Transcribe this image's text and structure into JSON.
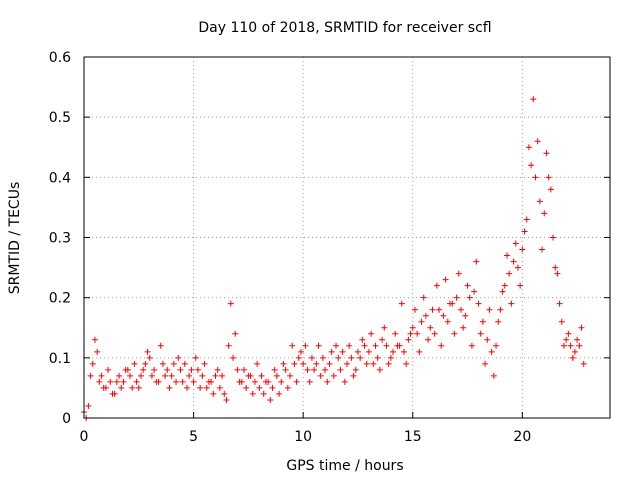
{
  "chart_data": {
    "type": "scatter",
    "title": "Day 110 of 2018, SRMTID for receiver scfl",
    "xlabel": "GPS time / hours",
    "ylabel": "SRMTID / TECUs",
    "xlim": [
      0,
      24
    ],
    "ylim": [
      0,
      0.6
    ],
    "xticks": [
      0,
      5,
      10,
      15,
      20
    ],
    "xtick_labels": [
      "0",
      "5",
      "10",
      "15",
      "20"
    ],
    "yticks": [
      0,
      0.1,
      0.2,
      0.3,
      0.4,
      0.5,
      0.6
    ],
    "ytick_labels": [
      "0",
      "0.1",
      "0.2",
      "0.3",
      "0.4",
      "0.5",
      "0.6"
    ],
    "grid": true,
    "marker": "+",
    "color": "#ff0000",
    "x": [
      0.0,
      0.2,
      0.4,
      0.6,
      0.8,
      1.0,
      1.2,
      1.4,
      1.6,
      1.8,
      2.0,
      2.2,
      2.4,
      2.6,
      2.8,
      3.0,
      3.2,
      3.4,
      3.6,
      3.8,
      4.0,
      4.2,
      4.4,
      4.6,
      4.8,
      5.0,
      5.2,
      5.4,
      5.6,
      5.8,
      6.0,
      6.2,
      6.4,
      6.6,
      6.8,
      7.0,
      7.2,
      7.4,
      7.6,
      7.8,
      8.0,
      8.2,
      8.4,
      8.6,
      8.8,
      9.0,
      9.2,
      9.4,
      9.6,
      9.8,
      10.0,
      10.2,
      10.4,
      10.6,
      10.8,
      11.0,
      11.2,
      11.4,
      11.6,
      11.8,
      12.0,
      12.2,
      12.4,
      12.6,
      12.8,
      13.0,
      13.2,
      13.4,
      13.6,
      13.8,
      14.0,
      14.2,
      14.4,
      14.6,
      14.8,
      15.0,
      15.2,
      15.4,
      15.6,
      15.8,
      16.0,
      16.2,
      16.4,
      16.6,
      16.8,
      17.0,
      17.2,
      17.4,
      17.6,
      17.8,
      18.0,
      18.2,
      18.4,
      18.6,
      18.8,
      19.0,
      19.2,
      19.4,
      19.6,
      19.8,
      20.0,
      20.2,
      20.4,
      20.6,
      20.8,
      21.0,
      21.2,
      21.4,
      21.6,
      21.8,
      22.0,
      22.2,
      22.4,
      22.6,
      22.8
    ],
    "y": [
      0.01,
      0.02,
      0.09,
      0.11,
      0.07,
      0.05,
      0.06,
      0.04,
      0.07,
      0.06,
      0.08,
      0.05,
      0.06,
      0.07,
      0.09,
      0.1,
      0.08,
      0.06,
      0.09,
      0.08,
      0.07,
      0.06,
      0.08,
      0.09,
      0.07,
      0.06,
      0.08,
      0.07,
      0.05,
      0.06,
      0.07,
      0.05,
      0.04,
      0.12,
      0.1,
      0.08,
      0.06,
      0.05,
      0.07,
      0.06,
      0.05,
      0.04,
      0.06,
      0.05,
      0.07,
      0.06,
      0.08,
      0.07,
      0.09,
      0.1,
      0.09,
      0.08,
      0.1,
      0.09,
      0.07,
      0.08,
      0.09,
      0.07,
      0.1,
      0.11,
      0.09,
      0.1,
      0.08,
      0.1,
      0.12,
      0.11,
      0.09,
      0.1,
      0.13,
      0.12,
      0.1,
      0.14,
      0.12,
      0.11,
      0.13,
      0.15,
      0.14,
      0.16,
      0.17,
      0.15,
      0.14,
      0.18,
      0.17,
      0.16,
      0.19,
      0.2,
      0.18,
      0.17,
      0.2,
      0.21,
      0.19,
      0.16,
      0.13,
      0.11,
      0.12,
      0.18,
      0.22,
      0.24,
      0.26,
      0.25,
      0.28,
      0.33,
      0.42,
      0.4,
      0.36,
      0.34,
      0.4,
      0.3,
      0.24,
      0.16,
      0.13,
      0.12,
      0.11,
      0.12,
      0.09
    ],
    "x2": [
      0.1,
      0.3,
      0.5,
      0.7,
      0.9,
      1.1,
      1.3,
      1.5,
      1.7,
      1.9,
      2.1,
      2.3,
      2.5,
      2.7,
      2.9,
      3.1,
      3.3,
      3.5,
      3.7,
      3.9,
      4.1,
      4.3,
      4.5,
      4.7,
      4.9,
      5.1,
      5.3,
      5.5,
      5.7,
      5.9,
      6.1,
      6.3,
      6.5,
      6.7,
      6.9,
      7.1,
      7.3,
      7.5,
      7.7,
      7.9,
      8.1,
      8.3,
      8.5,
      8.7,
      8.9,
      9.1,
      9.3,
      9.5,
      9.7,
      9.9,
      10.1,
      10.3,
      10.5,
      10.7,
      10.9,
      11.1,
      11.3,
      11.5,
      11.7,
      11.9,
      12.1,
      12.3,
      12.5,
      12.7,
      12.9,
      13.1,
      13.3,
      13.5,
      13.7,
      13.9,
      14.1,
      14.3,
      14.5,
      14.7,
      14.9,
      15.1,
      15.3,
      15.5,
      15.7,
      15.9,
      16.1,
      16.3,
      16.5,
      16.7,
      16.9,
      17.1,
      17.3,
      17.5,
      17.7,
      17.9,
      18.1,
      18.3,
      18.5,
      18.7,
      18.9,
      19.1,
      19.3,
      19.5,
      19.7,
      19.9,
      20.1,
      20.3,
      20.5,
      20.7,
      20.9,
      21.1,
      21.3,
      21.5,
      21.7,
      21.9,
      22.1,
      22.3,
      22.5,
      22.7
    ],
    "y2": [
      0.0,
      0.07,
      0.13,
      0.06,
      0.05,
      0.08,
      0.04,
      0.06,
      0.05,
      0.08,
      0.07,
      0.09,
      0.05,
      0.08,
      0.11,
      0.07,
      0.06,
      0.12,
      0.07,
      0.05,
      0.09,
      0.1,
      0.06,
      0.05,
      0.08,
      0.1,
      0.05,
      0.09,
      0.06,
      0.04,
      0.08,
      0.07,
      0.03,
      0.19,
      0.14,
      0.06,
      0.08,
      0.07,
      0.04,
      0.09,
      0.07,
      0.06,
      0.03,
      0.08,
      0.04,
      0.09,
      0.05,
      0.12,
      0.06,
      0.11,
      0.12,
      0.06,
      0.08,
      0.12,
      0.1,
      0.06,
      0.11,
      0.12,
      0.08,
      0.06,
      0.12,
      0.07,
      0.11,
      0.13,
      0.09,
      0.14,
      0.12,
      0.08,
      0.15,
      0.09,
      0.11,
      0.12,
      0.19,
      0.09,
      0.14,
      0.18,
      0.11,
      0.2,
      0.13,
      0.18,
      0.22,
      0.12,
      0.23,
      0.19,
      0.14,
      0.24,
      0.15,
      0.22,
      0.12,
      0.26,
      0.14,
      0.09,
      0.18,
      0.07,
      0.16,
      0.21,
      0.27,
      0.19,
      0.29,
      0.22,
      0.31,
      0.45,
      0.53,
      0.46,
      0.28,
      0.44,
      0.38,
      0.25,
      0.19,
      0.12,
      0.14,
      0.1,
      0.13,
      0.15,
      0.07
    ]
  }
}
